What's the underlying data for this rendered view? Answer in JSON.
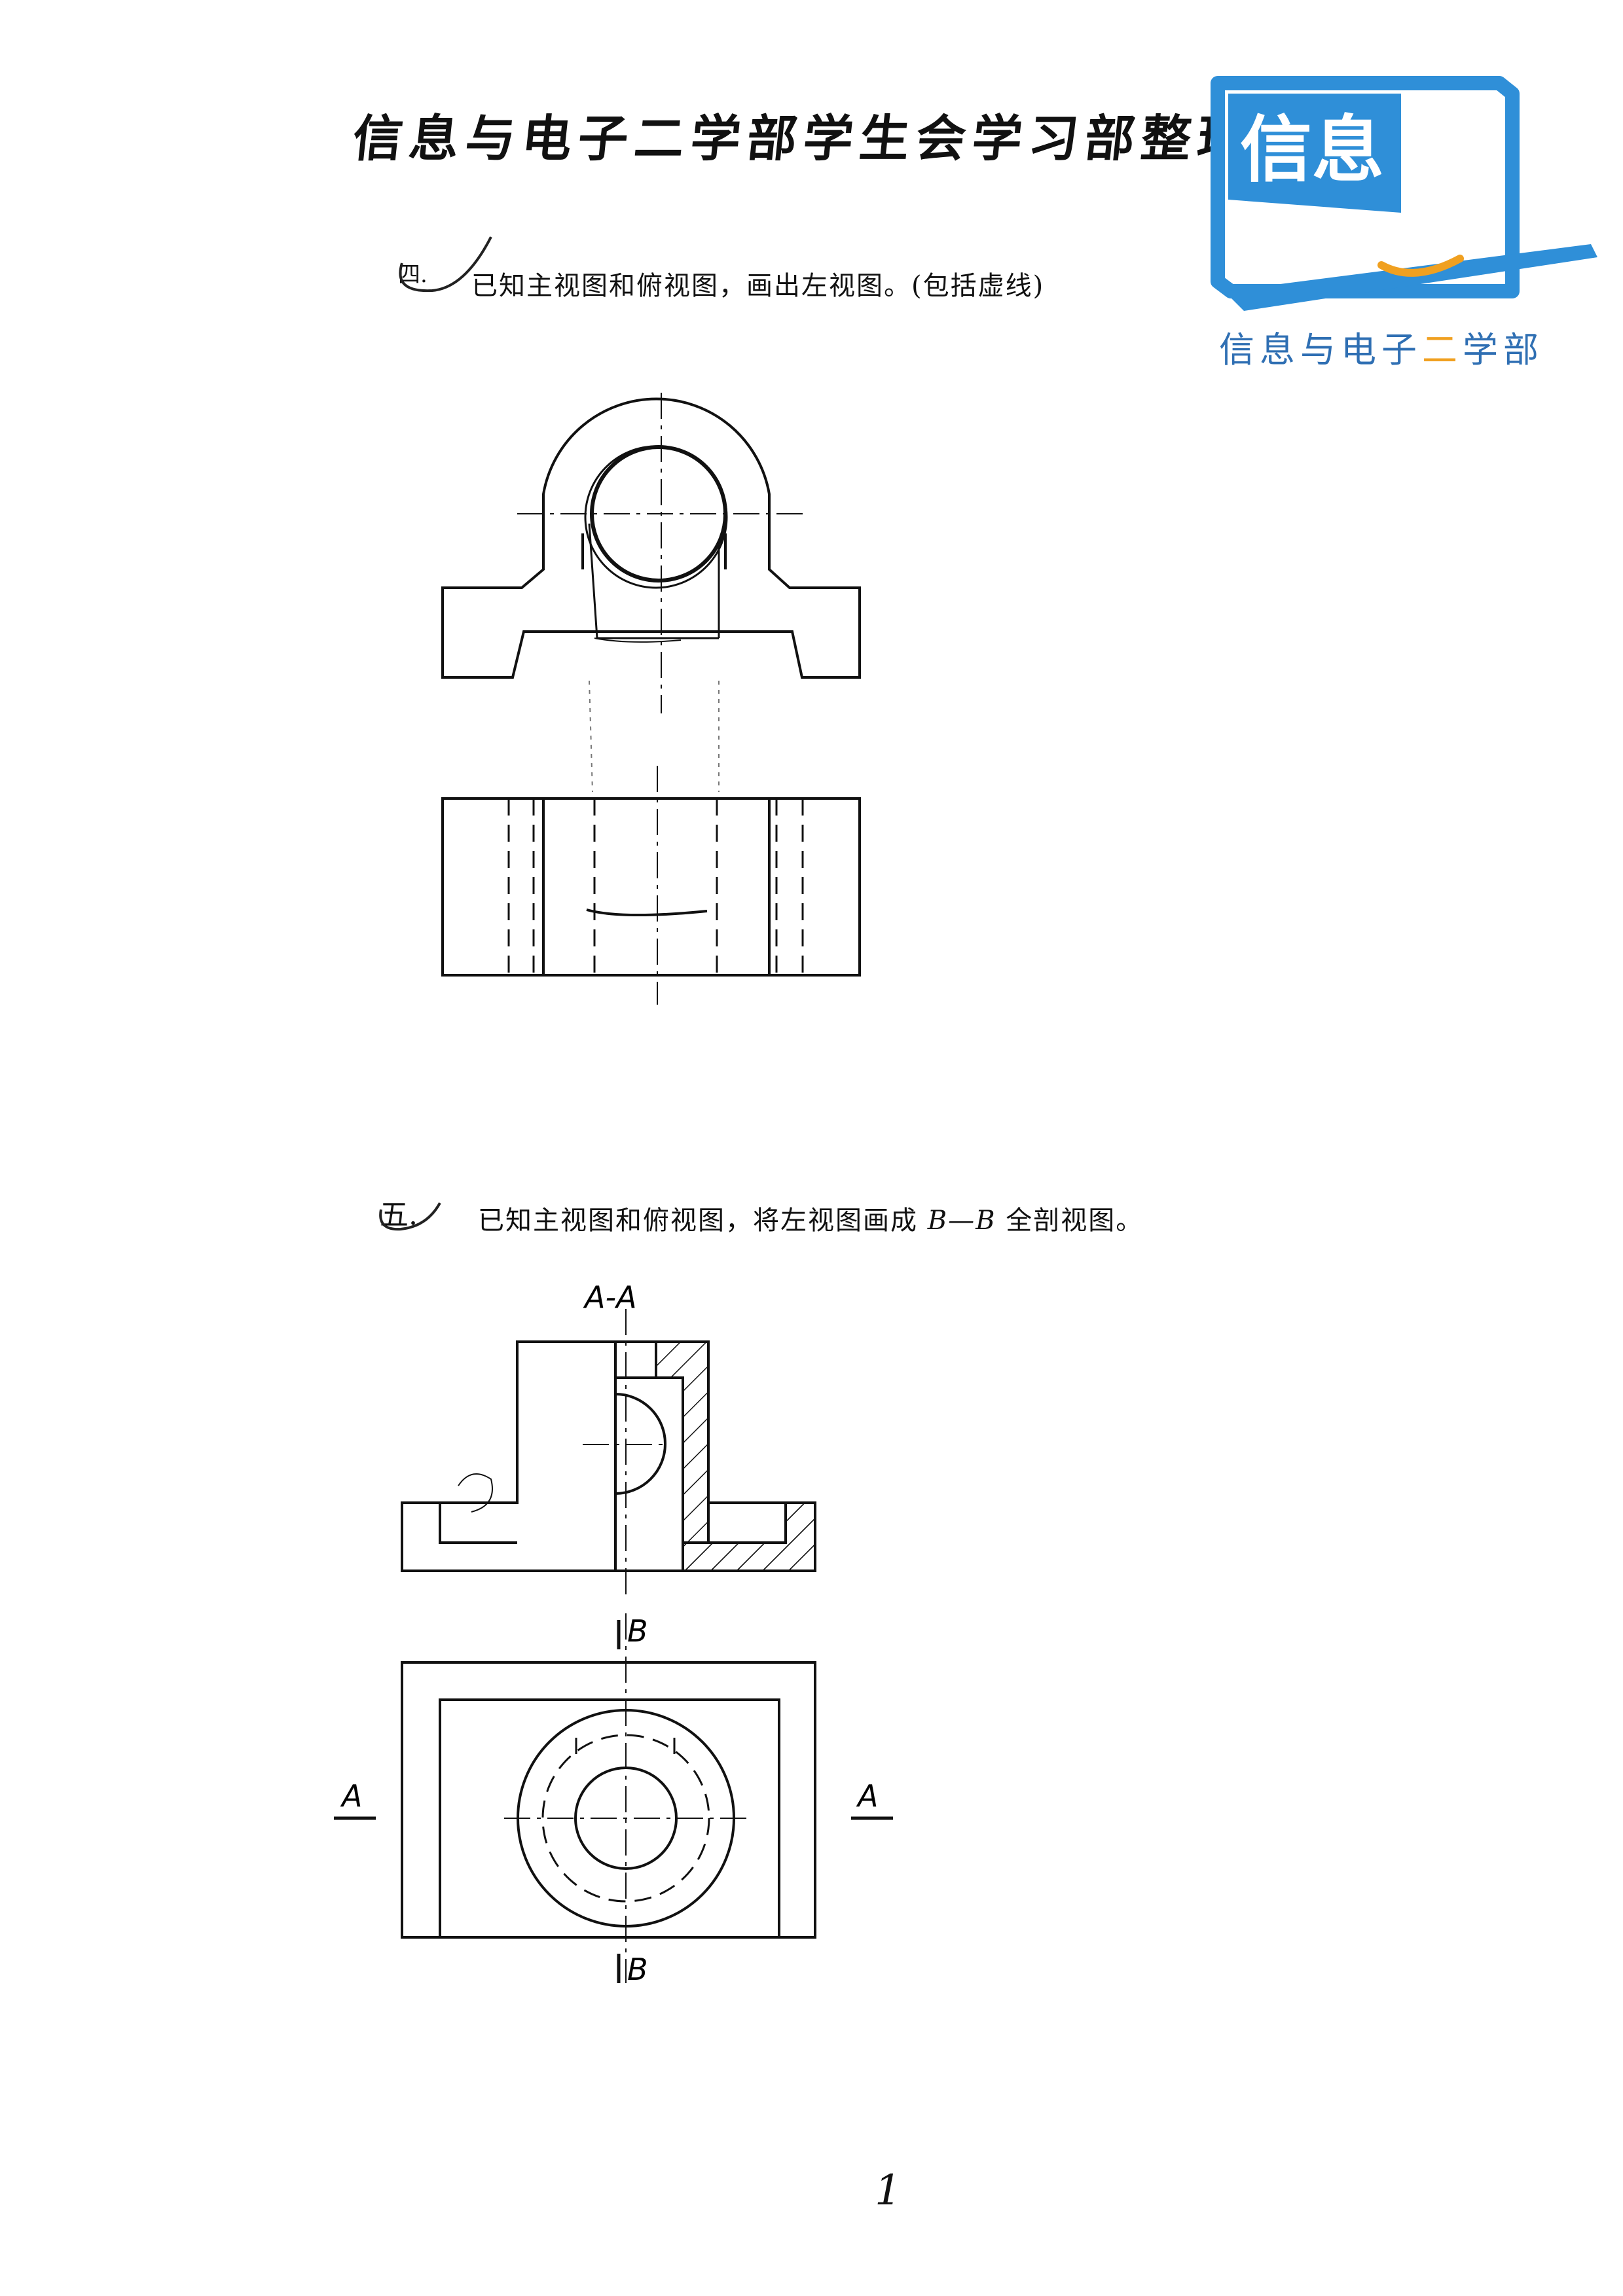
{
  "header": {
    "title": "信息与电子二学部学生会学习部整理"
  },
  "logo": {
    "mark_text": "信息",
    "caption_a": "信息与电子",
    "caption_b": "二",
    "caption_c": "学部",
    "color": "#2f8fd8",
    "accent": "#f0a020"
  },
  "question4": {
    "label": "四.",
    "text": "已知主视图和俯视图，画出左视图。(包括虚线)"
  },
  "question5": {
    "label": "五.",
    "text_a": "已知主视图和俯视图，将左视图画成 ",
    "text_b": "B—B",
    "text_c": " 全剖视图。"
  },
  "figure5": {
    "section_label": "A-A",
    "cut_label_top": "B",
    "cut_label_bottom": "B",
    "arrow_label_left": "A",
    "arrow_label_right": "A"
  },
  "page": {
    "number": "1"
  }
}
